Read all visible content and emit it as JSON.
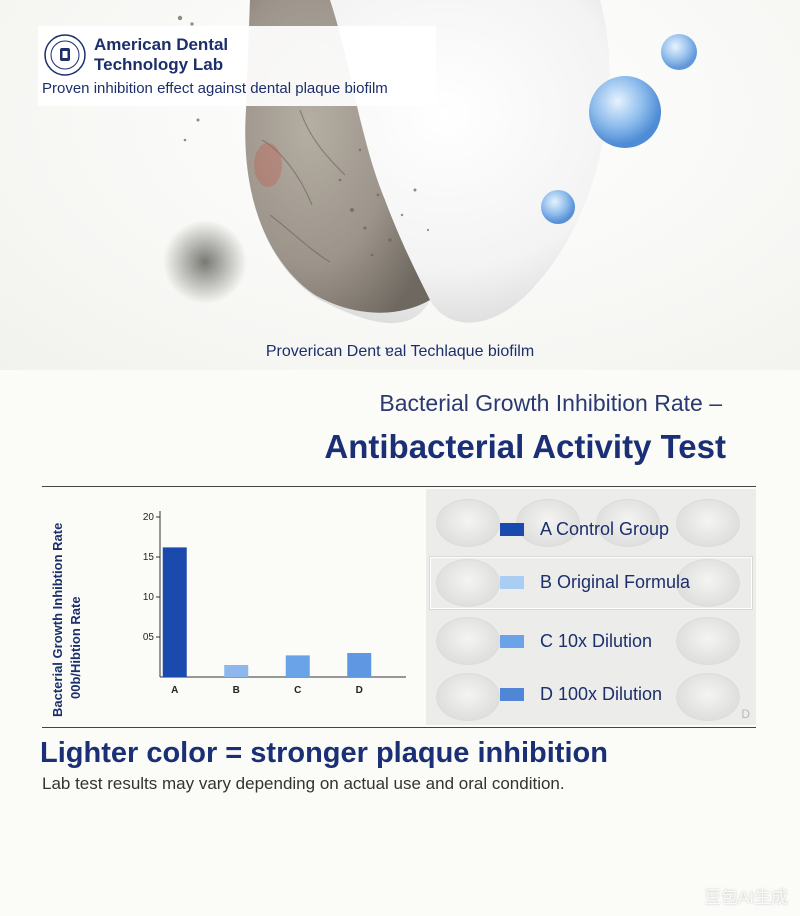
{
  "logo": {
    "name_line1": "American Dental",
    "name_line2": "Technology Lab",
    "tagline": "Proven inhibition effect against dental plaque biofilm"
  },
  "hero": {
    "caption": "Proverican Dent ɐal Techlaque biofilm"
  },
  "heading": {
    "subtitle": "Bacterial Growth Inhibition Rate –",
    "title": "Antibacterial Activity Test"
  },
  "chart_data": {
    "type": "bar",
    "categories": [
      "A",
      "B",
      "C",
      "D"
    ],
    "values": [
      16.2,
      1.5,
      2.7,
      3.0
    ],
    "ylabel": "Bacterial Growth Inhibtion Rate 00b/Hibtion Rate",
    "ylim": [
      0,
      20
    ],
    "yticks": [
      {
        "value": 20,
        "label": "20"
      },
      {
        "value": 15,
        "label": "15"
      },
      {
        "value": 10,
        "label": "10"
      },
      {
        "value": 5,
        "label": "05"
      }
    ],
    "colors": [
      "#1a4aad",
      "#8db8ee",
      "#6aa3e8",
      "#5f97e2"
    ],
    "grid": false
  },
  "legend": {
    "items": [
      {
        "label": "A  Control Group",
        "color": "#1a4aad"
      },
      {
        "label": "B  Original Formula",
        "color": "#a9cdf3"
      },
      {
        "label": "C    10x Dilution",
        "color": "#6aa3e8"
      },
      {
        "label": "D  100x Dilution",
        "color": "#4f86d6"
      }
    ],
    "plate_mark": "D"
  },
  "footer": {
    "headline": "Lighter color = stronger plaque inhibition",
    "disclaimer": "Lab test results may vary depending on actual use and oral condition.",
    "watermark": "豆包AI生成"
  }
}
